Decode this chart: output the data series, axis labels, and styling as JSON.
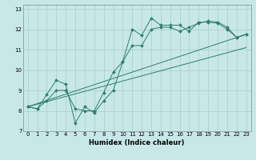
{
  "title": "",
  "xlabel": "Humidex (Indice chaleur)",
  "bg_color": "#c8e8e8",
  "line_color": "#2e7d6e",
  "grid_color": "#aacccc",
  "xlim": [
    -0.5,
    23.5
  ],
  "ylim": [
    7,
    13.2
  ],
  "yticks": [
    7,
    8,
    9,
    10,
    11,
    12,
    13
  ],
  "xticks": [
    0,
    1,
    2,
    3,
    4,
    5,
    6,
    7,
    8,
    9,
    10,
    11,
    12,
    13,
    14,
    15,
    16,
    17,
    18,
    19,
    20,
    21,
    22,
    23
  ],
  "series": [
    {
      "x": [
        0,
        1,
        2,
        3,
        4,
        5,
        6,
        7,
        8,
        9,
        10,
        11,
        12,
        13,
        14,
        15,
        16,
        17,
        18,
        19,
        20,
        21,
        22,
        23
      ],
      "y": [
        8.2,
        8.1,
        8.8,
        9.5,
        9.3,
        7.4,
        8.2,
        7.9,
        8.5,
        9.0,
        10.4,
        12.0,
        11.7,
        12.55,
        12.2,
        12.2,
        12.2,
        11.9,
        12.35,
        12.35,
        12.3,
        12.0,
        11.6,
        11.75
      ],
      "marker": "D",
      "markersize": 2.0
    },
    {
      "x": [
        0,
        1,
        2,
        3,
        4,
        5,
        6,
        7,
        8,
        9,
        10,
        11,
        12,
        13,
        14,
        15,
        16,
        17,
        18,
        19,
        20,
        21,
        22,
        23
      ],
      "y": [
        8.2,
        8.1,
        8.5,
        9.0,
        9.0,
        8.1,
        8.0,
        8.0,
        8.9,
        9.9,
        10.4,
        11.2,
        11.2,
        12.0,
        12.1,
        12.1,
        11.9,
        12.1,
        12.3,
        12.4,
        12.35,
        12.1,
        11.6,
        11.75
      ],
      "marker": "D",
      "markersize": 2.0
    },
    {
      "x": [
        0,
        23
      ],
      "y": [
        8.2,
        11.75
      ],
      "marker": null,
      "markersize": 0
    },
    {
      "x": [
        0,
        23
      ],
      "y": [
        8.2,
        11.1
      ],
      "marker": null,
      "markersize": 0
    }
  ],
  "tick_fontsize": 5.0,
  "xlabel_fontsize": 6.0,
  "linewidth": 0.7
}
